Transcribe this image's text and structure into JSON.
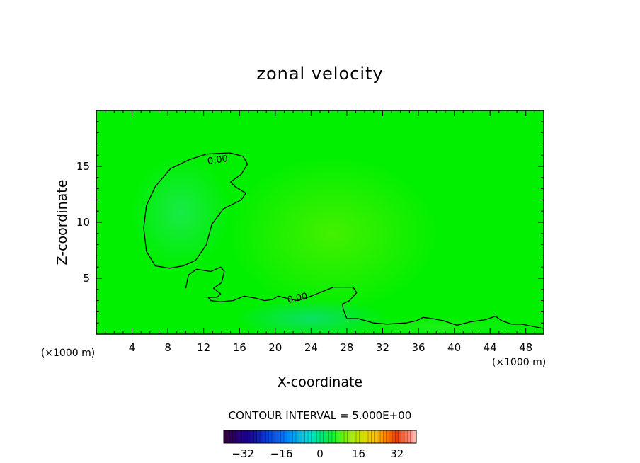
{
  "chart_data": {
    "type": "heatmap",
    "title": "zonal velocity",
    "xlabel": "X-coordinate",
    "ylabel": "Z-coordinate",
    "x_units": "(×1000 m)",
    "x_units_right": "(×1000 m)",
    "xlim": [
      0,
      50
    ],
    "ylim": [
      0,
      20
    ],
    "x_ticks": [
      4,
      8,
      12,
      16,
      20,
      24,
      28,
      32,
      36,
      40,
      44,
      48
    ],
    "y_ticks": [
      5,
      10,
      15
    ],
    "field_range": [
      -40,
      40
    ],
    "background_value": 0,
    "zero_contour_label": "0.00",
    "zero_contour_upper": [
      [
        5.3,
        9.5
      ],
      [
        5.6,
        11.5
      ],
      [
        6.6,
        13.2
      ],
      [
        8.3,
        14.8
      ],
      [
        10.4,
        15.6
      ],
      [
        12.3,
        16.1
      ],
      [
        14.9,
        16.2
      ],
      [
        16.4,
        15.9
      ],
      [
        16.9,
        15.2
      ],
      [
        16.2,
        14.3
      ],
      [
        15.0,
        13.6
      ],
      [
        15.5,
        13.2
      ],
      [
        16.7,
        12.6
      ],
      [
        16.2,
        12.0
      ],
      [
        14.2,
        11.2
      ],
      [
        12.9,
        9.8
      ],
      [
        12.3,
        8.0
      ],
      [
        11.1,
        6.6
      ],
      [
        9.7,
        6.1
      ],
      [
        8.2,
        5.9
      ],
      [
        6.6,
        6.1
      ],
      [
        5.6,
        7.4
      ],
      [
        5.3,
        9.5
      ]
    ],
    "zero_contour_lower": [
      [
        10.0,
        4.1
      ],
      [
        10.3,
        5.3
      ],
      [
        11.2,
        5.8
      ],
      [
        12.8,
        5.6
      ],
      [
        13.9,
        6.0
      ],
      [
        14.3,
        5.6
      ],
      [
        14.0,
        4.6
      ],
      [
        13.1,
        4.1
      ],
      [
        13.9,
        3.6
      ],
      [
        13.5,
        3.3
      ],
      [
        12.5,
        3.3
      ],
      [
        12.8,
        3.0
      ],
      [
        13.9,
        2.9
      ],
      [
        15.3,
        3.0
      ],
      [
        16.5,
        3.4
      ],
      [
        17.9,
        3.2
      ],
      [
        18.8,
        3.0
      ],
      [
        19.7,
        3.1
      ],
      [
        20.3,
        3.4
      ],
      [
        21.3,
        3.2
      ],
      [
        22.5,
        3.0
      ],
      [
        24.0,
        3.4
      ],
      [
        26.5,
        4.2
      ],
      [
        28.7,
        4.2
      ],
      [
        29.1,
        3.7
      ],
      [
        28.3,
        3.0
      ],
      [
        27.5,
        2.7
      ],
      [
        27.6,
        2.2
      ],
      [
        28.0,
        1.4
      ],
      [
        29.2,
        1.4
      ],
      [
        31.0,
        1.0
      ],
      [
        32.5,
        0.9
      ],
      [
        34.6,
        1.0
      ],
      [
        35.8,
        1.2
      ],
      [
        36.5,
        1.5
      ],
      [
        37.5,
        1.4
      ],
      [
        38.8,
        1.2
      ],
      [
        40.3,
        0.8
      ],
      [
        41.8,
        1.1
      ],
      [
        43.5,
        1.3
      ],
      [
        44.6,
        1.6
      ],
      [
        45.3,
        1.2
      ],
      [
        46.4,
        0.9
      ],
      [
        47.5,
        0.9
      ],
      [
        50.0,
        0.5
      ]
    ],
    "colorbar": {
      "label": "CONTOUR INTERVAL = 5.000E+00",
      "range": [
        -40,
        40
      ],
      "interval": 5,
      "tick_values": [
        -32,
        -16,
        0,
        16,
        32
      ],
      "tick_labels": [
        "−32",
        "−16",
        "0",
        "16",
        "32"
      ]
    },
    "grid": false,
    "legend": "colorbar-bottom"
  }
}
